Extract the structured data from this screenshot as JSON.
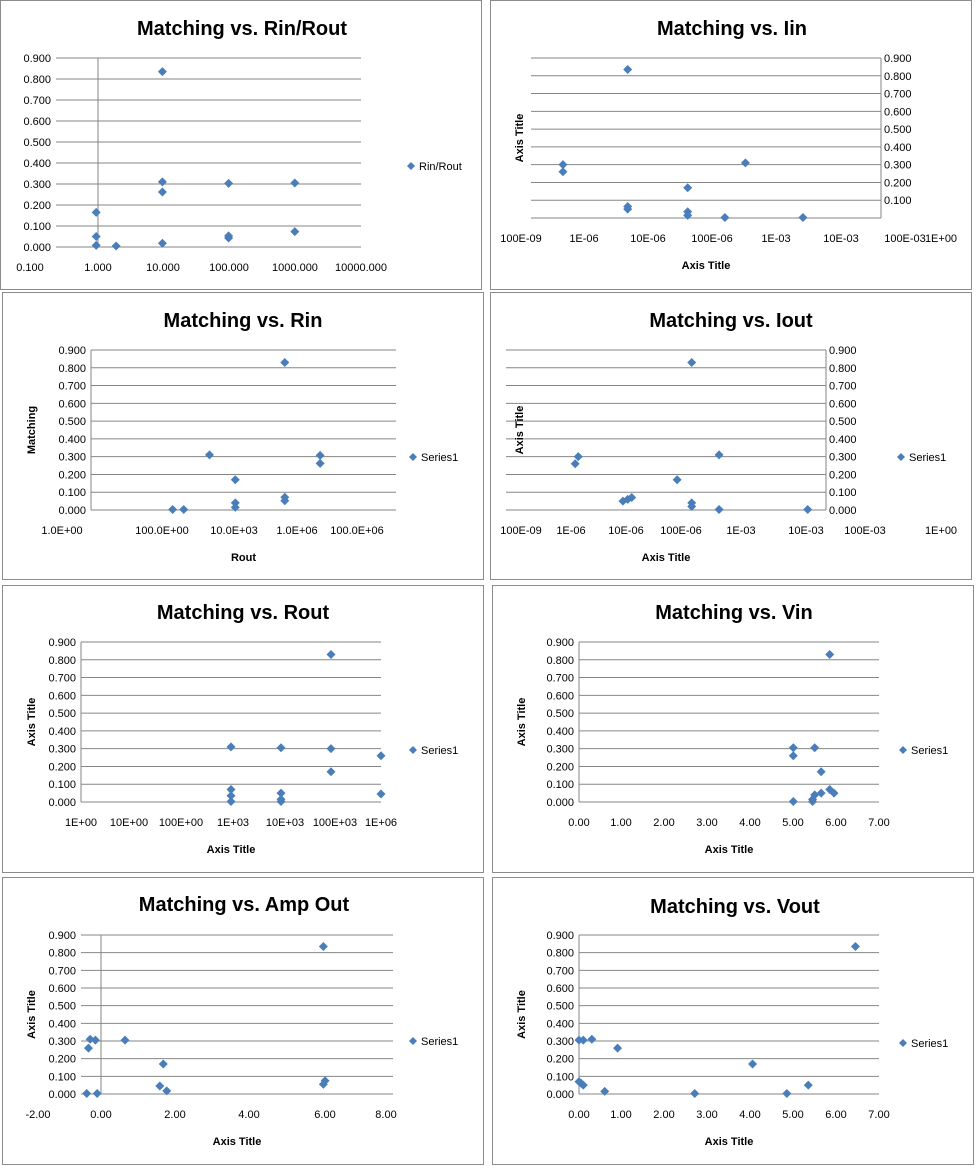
{
  "colors": {
    "marker": "#4a7ebb",
    "grid": "#868686",
    "axis": "#868686"
  },
  "y_ticks": [
    "0.000",
    "0.100",
    "0.200",
    "0.300",
    "0.400",
    "0.500",
    "0.600",
    "0.700",
    "0.800",
    "0.900"
  ],
  "chart_data": [
    {
      "type": "scatter",
      "title": "Matching vs. Rin/Rout",
      "xlabel": "",
      "ylabel": "",
      "legend": "Rin/Rout",
      "legend_position": "right",
      "x_scale": "log",
      "xlim": [
        0.1,
        10000
      ],
      "ylim": [
        0,
        0.9
      ],
      "y_axis_side": "left",
      "x_tick_labels": [
        "0.100",
        "1.000",
        "10.000",
        "100.000",
        "1000.000",
        "10000.000"
      ],
      "y_tick_labels": [
        "0.000",
        "0.100",
        "0.200",
        "0.300",
        "0.400",
        "0.500",
        "0.600",
        "0.700",
        "0.800",
        "0.900"
      ],
      "points": [
        [
          1,
          0.165
        ],
        [
          1,
          0.05
        ],
        [
          1,
          0.008
        ],
        [
          2,
          0.005
        ],
        [
          10,
          0.835
        ],
        [
          10,
          0.31
        ],
        [
          10,
          0.262
        ],
        [
          10,
          0.018
        ],
        [
          100,
          0.303
        ],
        [
          100,
          0.053
        ],
        [
          100,
          0.043
        ],
        [
          1000,
          0.305
        ],
        [
          1000,
          0.073
        ]
      ]
    },
    {
      "type": "scatter",
      "title": "Matching vs. Iin",
      "xlabel": "Axis Title",
      "ylabel": "Axis Title",
      "legend": "",
      "legend_position": "none",
      "x_scale": "log",
      "xlim": [
        1e-07,
        1
      ],
      "ylim": [
        0,
        0.9
      ],
      "y_axis_side": "right",
      "x_tick_labels": [
        "100E-09",
        "1E-06",
        "10E-06",
        "100E-06",
        "1E-03",
        "10E-03",
        "100E-03",
        "1E+00"
      ],
      "y_tick_labels": [
        "",
        "0.100",
        "0.200",
        "0.300",
        "0.400",
        "0.500",
        "0.600",
        "0.700",
        "0.800",
        "0.900"
      ],
      "points": [
        [
          5e-07,
          0.3
        ],
        [
          5e-07,
          0.26
        ],
        [
          6e-06,
          0.835
        ],
        [
          6e-06,
          0.065
        ],
        [
          6e-06,
          0.05
        ],
        [
          6e-05,
          0.17
        ],
        [
          6e-05,
          0.035
        ],
        [
          6e-05,
          0.015
        ],
        [
          0.00025,
          0.003
        ],
        [
          0.00055,
          0.31
        ],
        [
          0.005,
          0.003
        ]
      ]
    },
    {
      "type": "scatter",
      "title": "Matching vs. Rin",
      "xlabel": "Rout",
      "ylabel": "Matching",
      "legend": "Series1",
      "legend_position": "right",
      "x_scale": "log",
      "xlim": [
        1,
        100000000.0
      ],
      "ylim": [
        0,
        0.9
      ],
      "y_axis_side": "left",
      "x_tick_labels": [
        "1.0E+00",
        "100.0E+00",
        "10.0E+03",
        "1.0E+06",
        "100.0E+06"
      ],
      "y_tick_labels": [
        "0.000",
        "0.100",
        "0.200",
        "0.300",
        "0.400",
        "0.500",
        "0.600",
        "0.700",
        "0.800",
        "0.900"
      ],
      "points": [
        [
          1000,
          0.003
        ],
        [
          2000,
          0.003
        ],
        [
          10000.0,
          0.31
        ],
        [
          50000.0,
          0.17
        ],
        [
          50000.0,
          0.04
        ],
        [
          50000.0,
          0.015
        ],
        [
          1100000.0,
          0.83
        ],
        [
          1100000.0,
          0.072
        ],
        [
          1100000.0,
          0.052
        ],
        [
          10000000.0,
          0.307
        ],
        [
          10000000.0,
          0.262
        ]
      ]
    },
    {
      "type": "scatter",
      "title": "Matching vs. Iout",
      "xlabel": "Axis Title",
      "ylabel": "Axis Title",
      "legend": "Series1",
      "legend_position": "right",
      "x_scale": "log",
      "xlim": [
        1e-07,
        1
      ],
      "ylim": [
        0,
        0.9
      ],
      "y_axis_side": "right",
      "x_tick_labels": [
        "100E-09",
        "1E-06",
        "10E-06",
        "100E-06",
        "1E-03",
        "10E-03",
        "100E-03",
        "1E+00"
      ],
      "y_tick_labels": [
        "0.000",
        "0.100",
        "0.200",
        "0.300",
        "0.400",
        "0.500",
        "0.600",
        "0.700",
        "0.800",
        "0.900"
      ],
      "points": [
        [
          8e-07,
          0.26
        ],
        [
          9e-07,
          0.3
        ],
        [
          5e-06,
          0.05
        ],
        [
          6e-06,
          0.06
        ],
        [
          7e-06,
          0.07
        ],
        [
          4e-05,
          0.17
        ],
        [
          7e-05,
          0.83
        ],
        [
          7e-05,
          0.04
        ],
        [
          7e-05,
          0.02
        ],
        [
          0.0002,
          0.31
        ],
        [
          0.0002,
          0.003
        ],
        [
          0.006,
          0.003
        ]
      ]
    },
    {
      "type": "scatter",
      "title": "Matching vs. Rout",
      "xlabel": "Axis Title",
      "ylabel": "Axis Title",
      "legend": "Series1",
      "legend_position": "right",
      "x_scale": "log",
      "xlim": [
        1,
        1000000.0
      ],
      "ylim": [
        0,
        0.9
      ],
      "y_axis_side": "left",
      "x_tick_labels": [
        "1E+00",
        "10E+00",
        "100E+00",
        "1E+03",
        "10E+03",
        "100E+03",
        "1E+06"
      ],
      "y_tick_labels": [
        "0.000",
        "0.100",
        "0.200",
        "0.300",
        "0.400",
        "0.500",
        "0.600",
        "0.700",
        "0.800",
        "0.900"
      ],
      "points": [
        [
          1000,
          0.31
        ],
        [
          1000,
          0.07
        ],
        [
          1000,
          0.035
        ],
        [
          1000,
          0.003
        ],
        [
          10000.0,
          0.305
        ],
        [
          10000.0,
          0.05
        ],
        [
          10000.0,
          0.015
        ],
        [
          10000.0,
          0.003
        ],
        [
          100000.0,
          0.83
        ],
        [
          100000.0,
          0.3
        ],
        [
          100000.0,
          0.17
        ],
        [
          1000000.0,
          0.26
        ],
        [
          1000000.0,
          0.045
        ]
      ]
    },
    {
      "type": "scatter",
      "title": "Matching vs. Vin",
      "xlabel": "Axis Title",
      "ylabel": "Axis Title",
      "legend": "Series1",
      "legend_position": "right",
      "x_scale": "linear",
      "xlim": [
        0,
        7
      ],
      "ylim": [
        0,
        0.9
      ],
      "y_axis_side": "left",
      "x_tick_labels": [
        "0.00",
        "1.00",
        "2.00",
        "3.00",
        "4.00",
        "5.00",
        "6.00",
        "7.00"
      ],
      "y_tick_labels": [
        "0.000",
        "0.100",
        "0.200",
        "0.300",
        "0.400",
        "0.500",
        "0.600",
        "0.700",
        "0.800",
        "0.900"
      ],
      "points": [
        [
          5.0,
          0.305
        ],
        [
          5.0,
          0.26
        ],
        [
          5.0,
          0.003
        ],
        [
          5.5,
          0.305
        ],
        [
          5.45,
          0.015
        ],
        [
          5.45,
          0.003
        ],
        [
          5.5,
          0.04
        ],
        [
          5.65,
          0.17
        ],
        [
          5.65,
          0.05
        ],
        [
          5.85,
          0.83
        ],
        [
          5.85,
          0.07
        ],
        [
          5.95,
          0.05
        ]
      ]
    },
    {
      "type": "scatter",
      "title": "Matching vs. Amp Out",
      "xlabel": "Axis Title",
      "ylabel": "Axis Title",
      "legend": "Series1",
      "legend_position": "right",
      "x_scale": "linear",
      "xlim": [
        -2,
        8
      ],
      "ylim": [
        0,
        0.9
      ],
      "y_axis_side": "left",
      "x_tick_labels": [
        "-2.00",
        "0.00",
        "2.00",
        "4.00",
        "6.00",
        "8.00"
      ],
      "y_tick_labels": [
        "0.000",
        "0.100",
        "0.200",
        "0.300",
        "0.400",
        "0.500",
        "0.600",
        "0.700",
        "0.800",
        "0.900"
      ],
      "points": [
        [
          -0.55,
          0.26
        ],
        [
          -0.5,
          0.31
        ],
        [
          -0.35,
          0.305
        ],
        [
          -0.6,
          0.003
        ],
        [
          -0.3,
          0.003
        ],
        [
          0.5,
          0.305
        ],
        [
          1.5,
          0.045
        ],
        [
          1.6,
          0.17
        ],
        [
          1.7,
          0.018
        ],
        [
          6.2,
          0.835
        ],
        [
          6.25,
          0.075
        ],
        [
          6.2,
          0.055
        ]
      ]
    },
    {
      "type": "scatter",
      "title": "Matching vs. Vout",
      "xlabel": "Axis Title",
      "ylabel": "Axis Title",
      "legend": "Series1",
      "legend_position": "right",
      "x_scale": "linear",
      "xlim": [
        0,
        7
      ],
      "ylim": [
        0,
        0.9
      ],
      "y_axis_side": "left",
      "x_tick_labels": [
        "0.00",
        "1.00",
        "2.00",
        "3.00",
        "4.00",
        "5.00",
        "6.00",
        "7.00"
      ],
      "y_tick_labels": [
        "0.000",
        "0.100",
        "0.200",
        "0.300",
        "0.400",
        "0.500",
        "0.600",
        "0.700",
        "0.800",
        "0.900"
      ],
      "points": [
        [
          0.0,
          0.305
        ],
        [
          0.1,
          0.305
        ],
        [
          0.3,
          0.31
        ],
        [
          0.0,
          0.07
        ],
        [
          0.05,
          0.06
        ],
        [
          0.1,
          0.05
        ],
        [
          0.6,
          0.015
        ],
        [
          0.9,
          0.26
        ],
        [
          2.7,
          0.003
        ],
        [
          4.05,
          0.17
        ],
        [
          4.85,
          0.003
        ],
        [
          5.35,
          0.05
        ],
        [
          6.45,
          0.835
        ]
      ]
    }
  ]
}
